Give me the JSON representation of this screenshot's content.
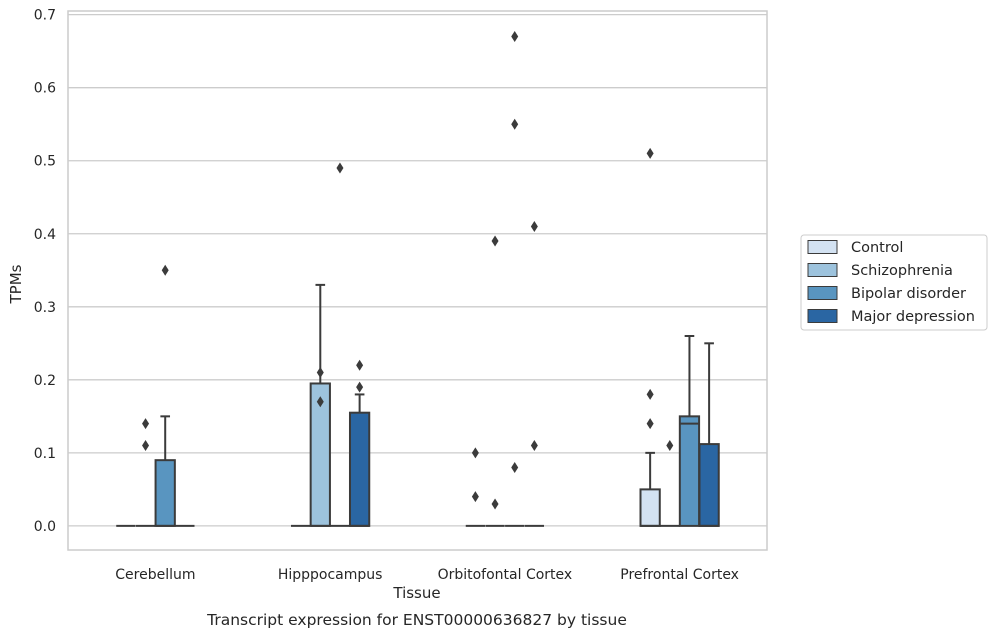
{
  "chart_data": {
    "type": "box",
    "title": "Transcript expression for ENST00000636827 by tissue",
    "xlabel": "Tissue",
    "ylabel": "TPMs",
    "ylim": [
      -0.033,
      0.705
    ],
    "yticks": [
      "0.0",
      "0.1",
      "0.2",
      "0.3",
      "0.4",
      "0.5",
      "0.6",
      "0.7"
    ],
    "grid": "horizontal",
    "legend_position": "right",
    "categories": [
      "Cerebellum",
      "Hipppocampus",
      "Orbitofontal Cortex",
      "Prefrontal Cortex"
    ],
    "series": [
      {
        "name": "Control",
        "color": "#d3e2f2",
        "boxes": [
          {
            "q1": 0,
            "median": 0,
            "q3": 0,
            "whisker_low": 0,
            "whisker_high": 0,
            "outliers": []
          },
          {
            "q1": 0,
            "median": 0,
            "q3": 0,
            "whisker_low": 0,
            "whisker_high": 0,
            "outliers": []
          },
          {
            "q1": 0,
            "median": 0,
            "q3": 0,
            "whisker_low": 0,
            "whisker_high": 0,
            "outliers": [
              0.1,
              0.04
            ]
          },
          {
            "q1": 0,
            "median": 0,
            "q3": 0.05,
            "whisker_low": 0,
            "whisker_high": 0.1,
            "outliers": [
              0.51,
              0.18,
              0.14
            ]
          }
        ]
      },
      {
        "name": "Schizophrenia",
        "color": "#9dc3dd",
        "boxes": [
          {
            "q1": 0,
            "median": 0,
            "q3": 0,
            "whisker_low": 0,
            "whisker_high": 0,
            "outliers": [
              0.14,
              0.11
            ]
          },
          {
            "q1": 0,
            "median": 0,
            "q3": 0.195,
            "whisker_low": 0,
            "whisker_high": 0.33,
            "outliers": [
              0.21,
              0.17
            ]
          },
          {
            "q1": 0,
            "median": 0,
            "q3": 0,
            "whisker_low": 0,
            "whisker_high": 0,
            "outliers": [
              0.39,
              0.03
            ]
          },
          {
            "q1": 0,
            "median": 0,
            "q3": 0,
            "whisker_low": 0,
            "whisker_high": 0,
            "outliers": [
              0.11
            ]
          }
        ]
      },
      {
        "name": "Bipolar disorder",
        "color": "#5995c0",
        "boxes": [
          {
            "q1": 0,
            "median": 0,
            "q3": 0.09,
            "whisker_low": 0,
            "whisker_high": 0.15,
            "outliers": [
              0.35
            ]
          },
          {
            "q1": 0,
            "median": 0,
            "q3": 0,
            "whisker_low": 0,
            "whisker_high": 0,
            "outliers": [
              0.49
            ]
          },
          {
            "q1": 0,
            "median": 0,
            "q3": 0,
            "whisker_low": 0,
            "whisker_high": 0,
            "outliers": [
              0.67,
              0.55,
              0.08
            ]
          },
          {
            "q1": 0,
            "median": 0.14,
            "q3": 0.15,
            "whisker_low": 0,
            "whisker_high": 0.26,
            "outliers": []
          }
        ]
      },
      {
        "name": "Major depression",
        "color": "#2a66a3",
        "boxes": [
          {
            "q1": 0,
            "median": 0,
            "q3": 0,
            "whisker_low": 0,
            "whisker_high": 0,
            "outliers": []
          },
          {
            "q1": 0,
            "median": 0,
            "q3": 0.155,
            "whisker_low": 0,
            "whisker_high": 0.18,
            "outliers": [
              0.22,
              0.19
            ]
          },
          {
            "q1": 0,
            "median": 0,
            "q3": 0,
            "whisker_low": 0,
            "whisker_high": 0,
            "outliers": [
              0.41,
              0.11
            ]
          },
          {
            "q1": 0,
            "median": 0,
            "q3": 0.112,
            "whisker_low": 0,
            "whisker_high": 0.25,
            "outliers": []
          }
        ]
      }
    ]
  }
}
